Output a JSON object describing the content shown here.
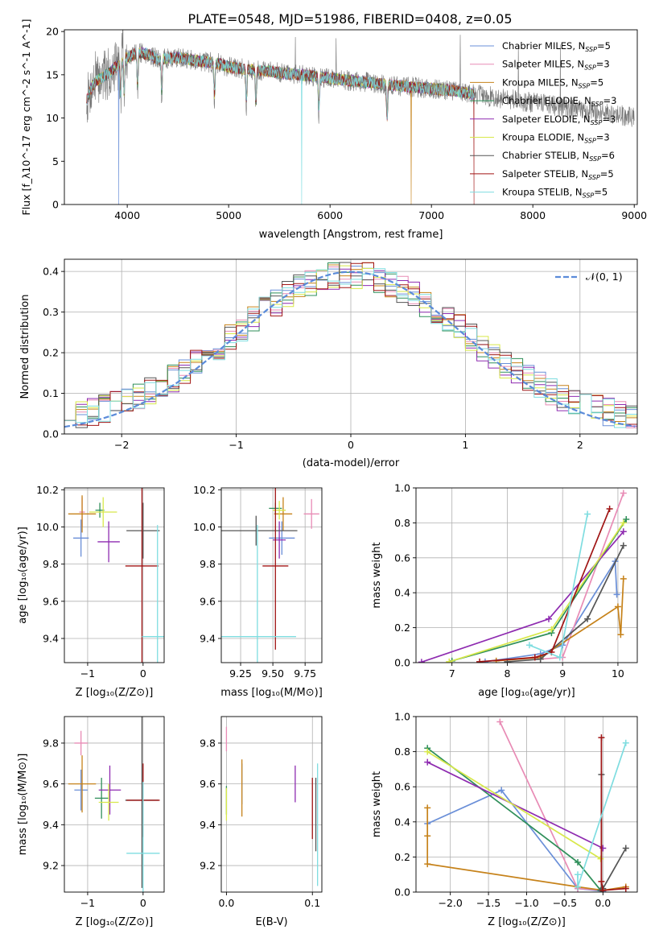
{
  "title": "PLATE=0548, MJD=51986, FIBERID=0408, z=0.05",
  "models": [
    {
      "key": "chabrier_miles",
      "label": "Chabrier MILES, N",
      "sub": "SSP",
      "suffix": "=5",
      "color": "#6a8fd8"
    },
    {
      "key": "salpeter_miles",
      "label": "Salpeter MILES, N",
      "sub": "SSP",
      "suffix": "=3",
      "color": "#e88bb5"
    },
    {
      "key": "kroupa_miles",
      "label": "Kroupa MILES, N",
      "sub": "SSP",
      "suffix": "=5",
      "color": "#c6821a"
    },
    {
      "key": "chabrier_elodie",
      "label": "Chabrier ELODIE, N",
      "sub": "SSP",
      "suffix": "=3",
      "color": "#2f8f5a"
    },
    {
      "key": "salpeter_elodie",
      "label": "Salpeter ELODIE, N",
      "sub": "SSP",
      "suffix": "=3",
      "color": "#8e2bb0"
    },
    {
      "key": "kroupa_elodie",
      "label": "Kroupa ELODIE, N",
      "sub": "SSP",
      "suffix": "=3",
      "color": "#d8e84a"
    },
    {
      "key": "chabrier_stelib",
      "label": "Chabrier STELIB, N",
      "sub": "SSP",
      "suffix": "=6",
      "color": "#555555"
    },
    {
      "key": "salpeter_stelib",
      "label": "Salpeter STELIB, N",
      "sub": "SSP",
      "suffix": "=5",
      "color": "#a01515"
    },
    {
      "key": "kroupa_stelib",
      "label": "Kroupa STELIB, N",
      "sub": "SSP",
      "suffix": "=5",
      "color": "#7fdde0"
    }
  ],
  "chart_data": [
    {
      "type": "line",
      "id": "spectrum",
      "xlabel": "wavelength [Angstrom, rest frame]",
      "ylabel": "Flux [f_λ10^-17 erg cm^-2 s^-1 A^-1]",
      "xlim": [
        3380,
        9030
      ],
      "ylim": [
        0,
        20.2
      ],
      "xticks": [
        4000,
        5000,
        6000,
        7000,
        8000,
        9000
      ],
      "yticks": [
        0,
        5,
        10,
        15,
        20
      ],
      "continuum": {
        "x": [
          3600,
          3650,
          3700,
          3800,
          3900,
          4000,
          4100,
          4200,
          4300,
          4500,
          4700,
          4900,
          5000,
          5200,
          5400,
          5600,
          5800,
          6000,
          6200,
          6400,
          6600,
          6800,
          7000,
          7200,
          7300,
          7400
        ],
        "y": [
          12.0,
          13.6,
          14.3,
          15.0,
          16.0,
          17.0,
          17.6,
          17.4,
          16.8,
          17.0,
          16.6,
          16.3,
          15.9,
          15.6,
          15.4,
          15.1,
          14.9,
          14.6,
          14.3,
          14.1,
          13.8,
          13.6,
          13.4,
          13.2,
          13.0,
          12.8
        ]
      },
      "observed_x": [
        3600,
        9000
      ],
      "model_x": [
        3600,
        7420
      ],
      "absorption_lines": [
        3934,
        3969,
        4102,
        4340,
        4861,
        5175,
        5270,
        5890,
        6563
      ],
      "drops": [
        {
          "x": 3915,
          "model": "chabrier_miles"
        },
        {
          "x": 5720,
          "model": "kroupa_stelib"
        },
        {
          "x": 6800,
          "model": "kroupa_miles"
        },
        {
          "x": 7420,
          "model": "salpeter_stelib"
        }
      ],
      "legend": "top-right",
      "grid": false
    },
    {
      "type": "line",
      "id": "residual_hist",
      "xlabel": "(data-model)/error",
      "ylabel": "Normed distribution",
      "xlim": [
        -2.5,
        2.5
      ],
      "ylim": [
        0,
        0.43
      ],
      "xticks": [
        -2,
        -1,
        0,
        1,
        2
      ],
      "xtick_labels": [
        "−2",
        "−1",
        "0",
        "1",
        "2"
      ],
      "yticks": [
        0.0,
        0.1,
        0.2,
        0.3,
        0.4
      ],
      "ytick_labels": [
        "0.0",
        "0.1",
        "0.2",
        "0.3",
        "0.4"
      ],
      "bin_width": 0.1,
      "reference": {
        "name": "𝒩(0, 1)",
        "mu": 0,
        "sigma": 1,
        "color": "#5b8bd9"
      },
      "legend": "top-right",
      "grid": true
    },
    {
      "type": "scatter",
      "id": "age_vs_Z",
      "xlabel": "Z [log₁₀(Z/Z⊙)]",
      "ylabel": "age  [log₁₀(age/yr)]",
      "xlim": [
        -1.42,
        0.38
      ],
      "ylim": [
        9.27,
        10.21
      ],
      "xticks": [
        -1,
        0
      ],
      "xtick_labels": [
        "−1",
        "0"
      ],
      "yticks": [
        9.4,
        9.6,
        9.8,
        10.0,
        10.2
      ],
      "ytick_labels": [
        "9.4",
        "9.6",
        "9.8",
        "10.0",
        "10.2"
      ],
      "grid": true,
      "points": [
        {
          "model": "chabrier_miles",
          "x": -1.12,
          "xerr": 0.14,
          "y": 9.94,
          "yerr": 0.1
        },
        {
          "model": "salpeter_miles",
          "x": -1.1,
          "xerr": 0.05,
          "y": 10.08,
          "yerr": 0.08
        },
        {
          "model": "kroupa_miles",
          "x": -1.1,
          "xerr": 0.25,
          "y": 10.07,
          "yerr": 0.1
        },
        {
          "model": "chabrier_elodie",
          "x": -0.78,
          "xerr": 0.08,
          "y": 10.09,
          "yerr": 0.04
        },
        {
          "model": "salpeter_elodie",
          "x": -0.62,
          "xerr": 0.2,
          "y": 9.92,
          "yerr": 0.11
        },
        {
          "model": "kroupa_elodie",
          "x": -0.72,
          "xerr": 0.25,
          "y": 10.08,
          "yerr": 0.08
        },
        {
          "model": "chabrier_stelib",
          "x": -0.0,
          "xerr": 0.3,
          "y": 9.98,
          "yerr": 0.15
        },
        {
          "model": "salpeter_stelib",
          "x": -0.02,
          "xerr": 0.3,
          "y": 9.79,
          "yerr": 0.6
        },
        {
          "model": "kroupa_stelib",
          "x": 0.26,
          "xerr": 0.28,
          "y": 9.41,
          "yerr": 0.6
        }
      ]
    },
    {
      "type": "scatter",
      "id": "age_vs_mass",
      "xlabel": "mass [log₁₀(M/M⊙)]",
      "ylabel": "",
      "xlim": [
        9.1,
        9.88
      ],
      "ylim": [
        9.27,
        10.21
      ],
      "xticks": [
        9.25,
        9.5,
        9.75
      ],
      "xtick_labels": [
        "9.25",
        "9.50",
        "9.75"
      ],
      "yticks": [
        9.4,
        9.6,
        9.8,
        10.0,
        10.2
      ],
      "ytick_labels": [
        "9.4",
        "9.6",
        "9.8",
        "10.0",
        "10.2"
      ],
      "grid": true,
      "points": [
        {
          "model": "chabrier_miles",
          "x": 9.57,
          "xerr": 0.1,
          "y": 9.94,
          "yerr": 0.09
        },
        {
          "model": "salpeter_miles",
          "x": 9.8,
          "xerr": 0.06,
          "y": 10.07,
          "yerr": 0.08
        },
        {
          "model": "kroupa_miles",
          "x": 9.58,
          "xerr": 0.07,
          "y": 10.07,
          "yerr": 0.09
        },
        {
          "model": "chabrier_elodie",
          "x": 9.52,
          "xerr": 0.05,
          "y": 10.1,
          "yerr": 0.03
        },
        {
          "model": "salpeter_elodie",
          "x": 9.55,
          "xerr": 0.05,
          "y": 9.93,
          "yerr": 0.1
        },
        {
          "model": "kroupa_elodie",
          "x": 9.55,
          "xerr": 0.05,
          "y": 10.09,
          "yerr": 0.05
        },
        {
          "model": "chabrier_stelib",
          "x": 9.37,
          "xerr": 0.32,
          "y": 9.98,
          "yerr": 0.08
        },
        {
          "model": "salpeter_stelib",
          "x": 9.52,
          "xerr": 0.1,
          "y": 9.79,
          "yerr": 0.45
        },
        {
          "model": "kroupa_stelib",
          "x": 9.38,
          "xerr": 0.3,
          "y": 9.41,
          "yerr": 0.6
        }
      ]
    },
    {
      "type": "line",
      "id": "massweight_vs_age",
      "xlabel": "age  [log₁₀(age/yr)]",
      "ylabel": "mass weight",
      "xlim": [
        6.35,
        10.35
      ],
      "ylim": [
        0,
        1
      ],
      "xticks": [
        7,
        8,
        9,
        10
      ],
      "xtick_labels": [
        "7",
        "8",
        "9",
        "10"
      ],
      "yticks": [
        0.0,
        0.2,
        0.4,
        0.6,
        0.8,
        1.0
      ],
      "ytick_labels": [
        "0.0",
        "0.2",
        "0.4",
        "0.6",
        "0.8",
        "1.0"
      ],
      "grid": true,
      "series": [
        {
          "model": "chabrier_miles",
          "x": [
            7.6,
            8.6,
            9.0,
            9.95,
            9.98
          ],
          "y": [
            0.005,
            0.05,
            0.1,
            0.58,
            0.39
          ]
        },
        {
          "model": "salpeter_miles",
          "x": [
            8.6,
            9.0,
            10.1
          ],
          "y": [
            0.02,
            0.03,
            0.97
          ]
        },
        {
          "model": "kroupa_miles",
          "x": [
            7.8,
            8.6,
            10.0,
            10.05,
            10.1
          ],
          "y": [
            0.01,
            0.03,
            0.32,
            0.16,
            0.48
          ]
        },
        {
          "model": "chabrier_elodie",
          "x": [
            7.0,
            8.8,
            10.15
          ],
          "y": [
            0.01,
            0.17,
            0.82
          ]
        },
        {
          "model": "salpeter_elodie",
          "x": [
            6.45,
            8.75,
            10.1
          ],
          "y": [
            0.003,
            0.25,
            0.75
          ]
        },
        {
          "model": "kroupa_elodie",
          "x": [
            6.95,
            8.8,
            10.1
          ],
          "y": [
            0.005,
            0.19,
            0.8
          ]
        },
        {
          "model": "chabrier_stelib",
          "x": [
            8.0,
            8.6,
            9.45,
            10.1
          ],
          "y": [
            0.005,
            0.02,
            0.25,
            0.67
          ]
        },
        {
          "model": "salpeter_stelib",
          "x": [
            7.5,
            8.5,
            8.8,
            9.85
          ],
          "y": [
            0.005,
            0.03,
            0.06,
            0.88
          ]
        },
        {
          "model": "kroupa_stelib",
          "x": [
            8.4,
            8.95,
            9.45
          ],
          "y": [
            0.1,
            0.03,
            0.85
          ]
        }
      ]
    },
    {
      "type": "scatter",
      "id": "mass_vs_Z",
      "xlabel": "Z [log₁₀(Z/Z⊙)]",
      "ylabel": "mass [log₁₀(M/M⊙)]",
      "xlim": [
        -1.42,
        0.38
      ],
      "ylim": [
        9.07,
        9.93
      ],
      "xticks": [
        -1,
        0
      ],
      "xtick_labels": [
        "−1",
        "0"
      ],
      "yticks": [
        9.2,
        9.4,
        9.6,
        9.8
      ],
      "ytick_labels": [
        "9.2",
        "9.4",
        "9.6",
        "9.8"
      ],
      "grid": true,
      "points": [
        {
          "model": "chabrier_miles",
          "x": -1.12,
          "xerr": 0.12,
          "y": 9.57,
          "yerr": 0.1
        },
        {
          "model": "salpeter_miles",
          "x": -1.12,
          "xerr": 0.12,
          "y": 9.8,
          "yerr": 0.06
        },
        {
          "model": "kroupa_miles",
          "x": -1.1,
          "xerr": 0.25,
          "y": 9.6,
          "yerr": 0.14
        },
        {
          "model": "chabrier_elodie",
          "x": -0.75,
          "xerr": 0.12,
          "y": 9.53,
          "yerr": 0.1
        },
        {
          "model": "salpeter_elodie",
          "x": -0.6,
          "xerr": 0.2,
          "y": 9.57,
          "yerr": 0.12
        },
        {
          "model": "kroupa_elodie",
          "x": -0.62,
          "xerr": 0.18,
          "y": 9.51,
          "yerr": 0.09
        },
        {
          "model": "chabrier_stelib",
          "x": -0.02,
          "xerr": 0.3,
          "y": 9.52,
          "yerr": 0.43
        },
        {
          "model": "salpeter_stelib",
          "x": 0.0,
          "xerr": 0.3,
          "y": 9.52,
          "yerr": 0.18
        },
        {
          "model": "kroupa_stelib",
          "x": 0.0,
          "xerr": 0.3,
          "y": 9.26,
          "yerr": 0.35
        }
      ]
    },
    {
      "type": "scatter",
      "id": "mass_vs_ebv",
      "xlabel": "E(B-V)",
      "ylabel": "",
      "xlim": [
        -0.006,
        0.111
      ],
      "ylim": [
        9.07,
        9.93
      ],
      "xticks": [
        0.0,
        0.1
      ],
      "xtick_labels": [
        "0.0",
        "0.1"
      ],
      "yticks": [
        9.2,
        9.4,
        9.6,
        9.8
      ],
      "ytick_labels": [
        "9.2",
        "9.4",
        "9.6",
        "9.8"
      ],
      "grid": true,
      "points": [
        {
          "model": "chabrier_miles",
          "x": 0.018,
          "xerr": 0,
          "y": 9.6,
          "yerr": 0.1
        },
        {
          "model": "salpeter_miles",
          "x": 0.0,
          "xerr": 0,
          "y": 9.82,
          "yerr": 0.06
        },
        {
          "model": "kroupa_miles",
          "x": 0.018,
          "xerr": 0,
          "y": 9.58,
          "yerr": 0.14
        },
        {
          "model": "chabrier_elodie",
          "x": 0.0,
          "xerr": 0,
          "y": 9.52,
          "yerr": 0.07
        },
        {
          "model": "salpeter_elodie",
          "x": 0.08,
          "xerr": 0,
          "y": 9.6,
          "yerr": 0.09
        },
        {
          "model": "kroupa_elodie",
          "x": 0.0,
          "xerr": 0,
          "y": 9.5,
          "yerr": 0.08
        },
        {
          "model": "chabrier_stelib",
          "x": 0.104,
          "xerr": 0,
          "y": 9.45,
          "yerr": 0.18
        },
        {
          "model": "salpeter_stelib",
          "x": 0.1,
          "xerr": 0,
          "y": 9.48,
          "yerr": 0.15
        },
        {
          "model": "kroupa_stelib",
          "x": 0.106,
          "xerr": 0,
          "y": 9.4,
          "yerr": 0.3
        }
      ]
    },
    {
      "type": "line",
      "id": "massweight_vs_Z",
      "xlabel": "Z [log₁₀(Z/Z⊙)]",
      "ylabel": "mass weight",
      "xlim": [
        -2.45,
        0.45
      ],
      "ylim": [
        0,
        1
      ],
      "xticks": [
        -2.0,
        -1.5,
        -1.0,
        -0.5,
        0.0
      ],
      "xtick_labels": [
        "−2.0",
        "−1.5",
        "−1.0",
        "−0.5",
        "0.0"
      ],
      "yticks": [
        0.0,
        0.2,
        0.4,
        0.6,
        0.8,
        1.0
      ],
      "ytick_labels": [
        "0.0",
        "0.2",
        "0.4",
        "0.6",
        "0.8",
        "1.0"
      ],
      "grid": true,
      "series": [
        {
          "model": "chabrier_miles",
          "x": [
            -2.3,
            -1.33,
            -0.33,
            0.0
          ],
          "y": [
            0.39,
            0.58,
            0.02,
            0.005
          ]
        },
        {
          "model": "salpeter_miles",
          "x": [
            -1.35,
            -0.33,
            0.0
          ],
          "y": [
            0.97,
            0.02,
            0.01
          ]
        },
        {
          "model": "kroupa_miles",
          "x": [
            -2.3,
            -2.3,
            -2.3,
            -0.33,
            0.0,
            0.3
          ],
          "y": [
            0.48,
            0.32,
            0.16,
            0.03,
            0.01,
            0.03
          ]
        },
        {
          "model": "chabrier_elodie",
          "x": [
            -2.3,
            -0.33,
            -0.03
          ],
          "y": [
            0.82,
            0.17,
            0.01
          ]
        },
        {
          "model": "salpeter_elodie",
          "x": [
            -2.3,
            -0.0
          ],
          "y": [
            0.74,
            0.25
          ]
        },
        {
          "model": "kroupa_elodie",
          "x": [
            -2.3,
            -0.03
          ],
          "y": [
            0.8,
            0.19
          ]
        },
        {
          "model": "chabrier_stelib",
          "x": [
            -0.02,
            -0.02,
            0.0,
            0.3
          ],
          "y": [
            0.67,
            0.01,
            0.02,
            0.25
          ]
        },
        {
          "model": "salpeter_stelib",
          "x": [
            -0.02,
            -0.02,
            0.0,
            0.3
          ],
          "y": [
            0.88,
            0.06,
            0.01,
            0.02
          ]
        },
        {
          "model": "kroupa_stelib",
          "x": [
            -0.33,
            -0.33,
            0.3
          ],
          "y": [
            0.1,
            0.03,
            0.85
          ]
        }
      ]
    }
  ]
}
